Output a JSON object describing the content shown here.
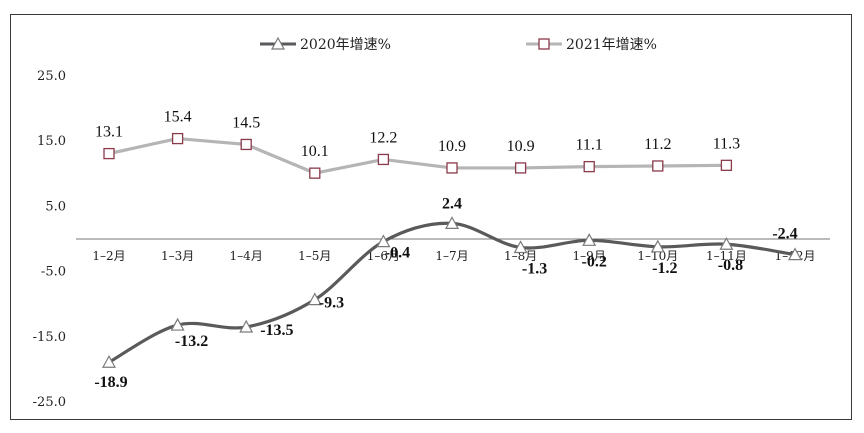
{
  "chart_data": {
    "type": "line",
    "categories": [
      "1–2月",
      "1–3月",
      "1–4月",
      "1–5月",
      "1–6月",
      "1–7月",
      "1–8月",
      "1–9月",
      "1–10月",
      "1–11月",
      "1–12月"
    ],
    "series": [
      {
        "name": "2020年增速%",
        "color": "#5a5a5c",
        "marker": "triangle",
        "smooth": true,
        "values": [
          -18.9,
          -13.2,
          -13.5,
          -9.3,
          -0.4,
          2.4,
          -1.3,
          -0.2,
          -1.2,
          -0.8,
          -2.4
        ],
        "labels": [
          "-18.9",
          "-13.2",
          "-13.5",
          "-9.3",
          "-0.4",
          "2.4",
          "-1.3",
          "-0.2",
          "-1.2",
          "-0.8",
          "-2.4"
        ]
      },
      {
        "name": "2021年增速%",
        "color": "#b5b5b5",
        "marker": "square",
        "marker_color": "#8b3a4a",
        "smooth": false,
        "values": [
          13.1,
          15.4,
          14.5,
          10.1,
          12.2,
          10.9,
          10.9,
          11.1,
          11.2,
          11.3,
          null
        ],
        "labels": [
          "13.1",
          "15.4",
          "14.5",
          "10.1",
          "12.2",
          "10.9",
          "10.9",
          "11.1",
          "11.2",
          "11.3",
          ""
        ]
      }
    ],
    "y_ticks": [
      "25.0",
      "15.0",
      "5.0",
      "-5.0",
      "-15.0",
      "-25.0"
    ],
    "y_tick_values": [
      25,
      15,
      5,
      -5,
      -15,
      -25
    ],
    "ylim": [
      -25,
      25
    ],
    "grid": false,
    "legend_position": "top-center"
  }
}
